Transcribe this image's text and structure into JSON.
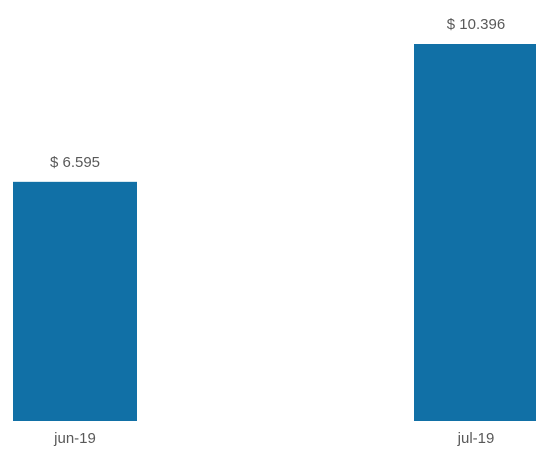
{
  "chart_data": {
    "type": "bar",
    "categories": [
      "jun-19",
      "jul-19"
    ],
    "values": [
      6595,
      10396
    ],
    "data_labels": [
      "$ 6.595",
      "$ 10.396"
    ],
    "title": "",
    "xlabel": "",
    "ylabel": "",
    "ylim": [
      0,
      10396
    ],
    "grid": false,
    "legend": "none",
    "bar_color": "#1170A6"
  }
}
